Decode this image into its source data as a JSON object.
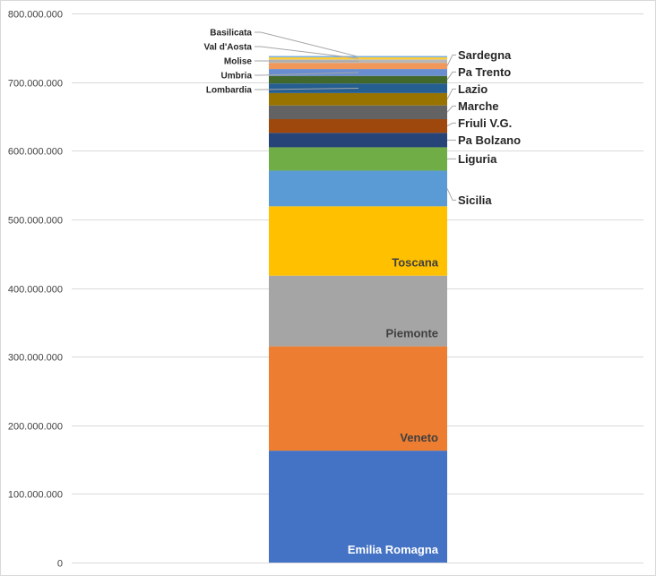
{
  "chart_data": {
    "type": "bar",
    "stacked": true,
    "title": "",
    "xlabel": "",
    "ylabel": "",
    "ylim": [
      0,
      800000000
    ],
    "y_tick_step": 100000000,
    "y_tick_labels": [
      "0",
      "100.000.000",
      "200.000.000",
      "300.000.000",
      "400.000.000",
      "500.000.000",
      "600.000.000",
      "700.000.000",
      "800.000.000"
    ],
    "grid": true,
    "series": [
      {
        "name": "Emilia Romagna",
        "value": 163000000,
        "color": "#4472C4",
        "label_color": "#FFFFFF",
        "label_mode": "inside"
      },
      {
        "name": "Veneto",
        "value": 152000000,
        "color": "#ED7D31",
        "label_color": "#404040",
        "label_mode": "inside"
      },
      {
        "name": "Piemonte",
        "value": 103000000,
        "color": "#A5A5A5",
        "label_color": "#404040",
        "label_mode": "inside"
      },
      {
        "name": "Toscana",
        "value": 101000000,
        "color": "#FFC000",
        "label_color": "#404040",
        "label_mode": "inside"
      },
      {
        "name": "Sicilia",
        "value": 52000000,
        "color": "#5B9BD5",
        "label_mode": "right"
      },
      {
        "name": "Liguria",
        "value": 34000000,
        "color": "#70AD47",
        "label_mode": "right"
      },
      {
        "name": "Pa Bolzano",
        "value": 21000000,
        "color": "#264478",
        "label_mode": "right"
      },
      {
        "name": "Friuli V.G.",
        "value": 20000000,
        "color": "#9E480E",
        "label_mode": "right"
      },
      {
        "name": "Marche",
        "value": 20000000,
        "color": "#636363",
        "label_mode": "right"
      },
      {
        "name": "Lazio",
        "value": 18000000,
        "color": "#997300",
        "label_mode": "right"
      },
      {
        "name": "Lombardia",
        "value": 14000000,
        "color": "#255E91",
        "label_mode": "left"
      },
      {
        "name": "Pa Trento",
        "value": 11000000,
        "color": "#43682B",
        "label_mode": "right"
      },
      {
        "name": "Umbria",
        "value": 10000000,
        "color": "#698ED0",
        "label_mode": "left"
      },
      {
        "name": "Sardegna",
        "value": 9000000,
        "color": "#F1975A",
        "label_mode": "right"
      },
      {
        "name": "Molise",
        "value": 5000000,
        "color": "#B7B7B7",
        "label_mode": "left"
      },
      {
        "name": "Val d'Aosta",
        "value": 3000000,
        "color": "#FFCD33",
        "label_mode": "left"
      },
      {
        "name": "Basilicata",
        "value": 2000000,
        "color": "#7CAFDD",
        "label_mode": "left"
      }
    ]
  }
}
